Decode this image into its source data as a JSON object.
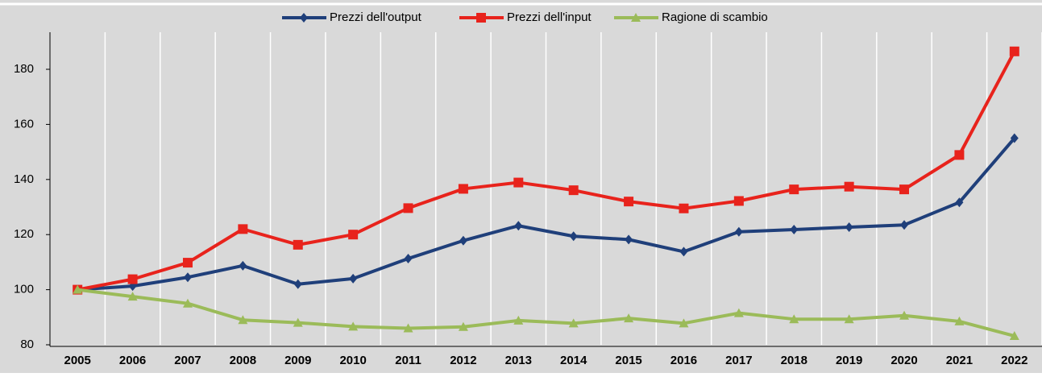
{
  "chart_data": {
    "type": "line",
    "categories": [
      "2005",
      "2006",
      "2007",
      "2008",
      "2009",
      "2010",
      "2011",
      "2012",
      "2013",
      "2014",
      "2015",
      "2016",
      "2017",
      "2018",
      "2019",
      "2020",
      "2021",
      "2022"
    ],
    "series": [
      {
        "name": "Prezzi dell'output",
        "color": "#1f3f7a",
        "marker": "diamond",
        "values": [
          100,
          101.3,
          104.5,
          108.7,
          102,
          104,
          111.3,
          117.8,
          123.2,
          119.4,
          118.2,
          113.8,
          121,
          121.8,
          122.7,
          123.5,
          131.7,
          155
        ]
      },
      {
        "name": "Prezzi dell'input",
        "color": "#e8231c",
        "marker": "square",
        "values": [
          100,
          103.8,
          109.8,
          122,
          116.3,
          120,
          129.6,
          136.6,
          138.9,
          136.1,
          132,
          129.5,
          132.2,
          136.4,
          137.4,
          136.4,
          148.9,
          186.5
        ]
      },
      {
        "name": "Ragione di scambio",
        "color": "#9bbb59",
        "marker": "triangle",
        "values": [
          100,
          97.5,
          95,
          89,
          88,
          86.6,
          86,
          86.5,
          88.8,
          87.8,
          89.6,
          87.8,
          91.5,
          89.3,
          89.3,
          90.6,
          88.5,
          83.2
        ]
      }
    ],
    "ylim": [
      80,
      191
    ],
    "yticks": [
      80,
      100,
      120,
      140,
      160,
      180
    ],
    "legend": "top",
    "grid": "vertical"
  }
}
